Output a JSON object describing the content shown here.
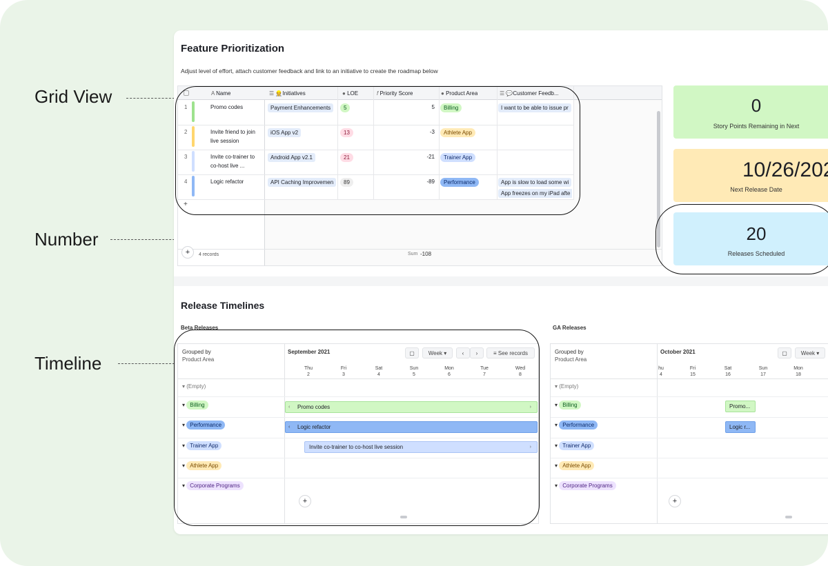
{
  "callouts": {
    "grid_view": "Grid View",
    "number": "Number",
    "timeline": "Timeline"
  },
  "feature": {
    "title": "Feature Prioritization",
    "subtitle": "Adjust level of effort, attach customer feedback and link to an initiative to create the roadmap below",
    "columns": {
      "name": "Name",
      "initiatives": "👷Initiatives",
      "loe": "LOE",
      "priority": "Priority Score",
      "area": "Product Area",
      "feedback": "💬Customer Feedb..."
    },
    "rows": [
      {
        "num": "1",
        "name": "Promo codes",
        "name2": "",
        "initiative": "Payment Enhancements",
        "loe": "5",
        "score": "5",
        "area": "Billing",
        "feedback1": "I want to be able to issue pr",
        "feedback2": ""
      },
      {
        "num": "2",
        "name": "Invite friend to join",
        "name2": "live session",
        "initiative": "iOS App v2",
        "loe": "13",
        "score": "-3",
        "area": "Athlete App",
        "feedback1": "",
        "feedback2": ""
      },
      {
        "num": "3",
        "name": "Invite co-trainer to",
        "name2": "co-host live ...",
        "initiative": "Android App v2.1",
        "loe": "21",
        "score": "-21",
        "area": "Trainer App",
        "feedback1": "",
        "feedback2": ""
      },
      {
        "num": "4",
        "name": "Logic refactor",
        "name2": "",
        "initiative": "API Caching Improvemen",
        "loe": "89",
        "score": "-89",
        "area": "Performance",
        "feedback1": "App is slow to load some wi",
        "feedback2": "App freezes on my iPad afte"
      }
    ],
    "records": "4 records",
    "sum_label": "Sum",
    "sum_value": "-108"
  },
  "numbers": [
    {
      "value": "0",
      "label": "Story Points Remaining in Next"
    },
    {
      "value": "10/26/202",
      "label": "Next Release Date"
    },
    {
      "value": "20",
      "label": "Releases Scheduled"
    }
  ],
  "timelines": {
    "title": "Release Timelines",
    "beta": {
      "label": "Beta Releases",
      "grouped_by": "Grouped by",
      "grouped_field": "Product Area",
      "month": "September 2021",
      "week_btn": "Week",
      "see_records": "See records",
      "days": [
        {
          "d": "Thu",
          "n": "2"
        },
        {
          "d": "Fri",
          "n": "3"
        },
        {
          "d": "Sat",
          "n": "4"
        },
        {
          "d": "Sun",
          "n": "5"
        },
        {
          "d": "Mon",
          "n": "6"
        },
        {
          "d": "Tue",
          "n": "7"
        },
        {
          "d": "Wed",
          "n": "8"
        }
      ],
      "groups": [
        "(Empty)",
        "Billing",
        "Performance",
        "Trainer App",
        "Athlete App",
        "Corporate Programs"
      ],
      "bars": [
        "Promo codes",
        "Logic refactor",
        "Invite co-trainer to co-host live session"
      ]
    },
    "ga": {
      "label": "GA Releases",
      "grouped_by": "Grouped by",
      "grouped_field": "Product Area",
      "month": "October 2021",
      "week_btn": "Week",
      "days": [
        {
          "d": "hu",
          "n": "4"
        },
        {
          "d": "Fri",
          "n": "15"
        },
        {
          "d": "Sat",
          "n": "16"
        },
        {
          "d": "Sun",
          "n": "17"
        },
        {
          "d": "Mon",
          "n": "18"
        }
      ],
      "groups": [
        "(Empty)",
        "Billing",
        "Performance",
        "Trainer App",
        "Athlete App",
        "Corporate Programs"
      ],
      "bars": [
        "Promo...",
        "Logic r..."
      ]
    }
  },
  "colors": {
    "billing_bg": "#d1f7c4",
    "billing_fg": "#0b5e1f",
    "athlete_bg": "#ffeab6",
    "athlete_fg": "#7a4b00",
    "trainer_bg": "#cfdfff",
    "trainer_fg": "#102a6a",
    "performance_bg": "#8fb8f5",
    "performance_fg": "#0b2a6a",
    "corporate_bg": "#ede2fe",
    "corporate_fg": "#4b1f80",
    "tile_green": "#d1f7c4",
    "tile_yellow": "#ffeab6",
    "tile_blue": "#d0f0fd"
  }
}
